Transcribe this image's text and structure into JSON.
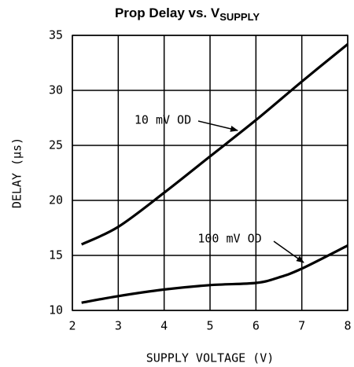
{
  "chart_data": {
    "type": "line",
    "title": "Prop Delay vs. V",
    "title_subscript": "SUPPLY",
    "x_label": "SUPPLY VOLTAGE (V)",
    "y_label": "DELAY (μs)",
    "xlim": [
      2,
      8
    ],
    "xticks": [
      2,
      3,
      4,
      5,
      6,
      7,
      8
    ],
    "ylim": [
      10,
      35
    ],
    "yticks": [
      10,
      15,
      20,
      25,
      30,
      35
    ],
    "grid": true,
    "series": [
      {
        "name": "10 mV OD",
        "color": "#000000",
        "x": [
          2.2,
          3,
          4,
          5,
          6,
          7,
          8
        ],
        "values": [
          16,
          17.6,
          20.7,
          24,
          27.3,
          30.8,
          34.2
        ]
      },
      {
        "name": "100 mV OD",
        "color": "#000000",
        "x": [
          2.2,
          3,
          4,
          5,
          6,
          6.5,
          7,
          8
        ],
        "values": [
          10.7,
          11.3,
          11.9,
          12.3,
          12.5,
          13,
          13.8,
          15.9
        ]
      }
    ]
  }
}
